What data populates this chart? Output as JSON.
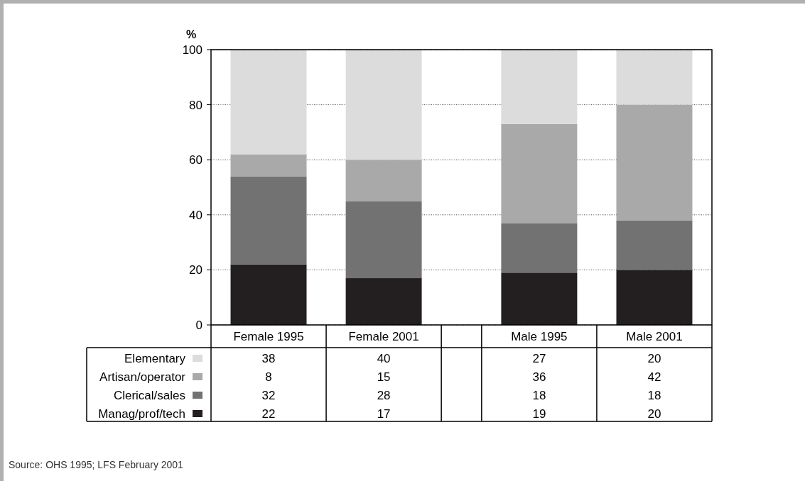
{
  "chart_data": {
    "type": "bar",
    "stacked": true,
    "ylabel": "%",
    "categories": [
      "Female 1995",
      "Female 2001",
      null,
      "Male 1995",
      "Male 2001"
    ],
    "series": [
      {
        "name": "Manag/prof/tech",
        "color": "#231f20",
        "values": [
          22,
          17,
          null,
          19,
          20
        ]
      },
      {
        "name": "Clerical/sales",
        "color": "#727272",
        "values": [
          32,
          28,
          null,
          18,
          18
        ]
      },
      {
        "name": "Artisan/operator",
        "color": "#a9a9a9",
        "values": [
          8,
          15,
          null,
          36,
          42
        ]
      },
      {
        "name": "Elementary",
        "color": "#dcdcdc",
        "values": [
          38,
          40,
          null,
          27,
          20
        ]
      }
    ],
    "ylim": [
      0,
      100
    ],
    "yticks": [
      0,
      20,
      40,
      60,
      80,
      100
    ],
    "grid": "y",
    "legend": "bottom left",
    "data_labels": true,
    "annotations": [
      "Source: OHS 1995; LFS February 2001"
    ]
  }
}
